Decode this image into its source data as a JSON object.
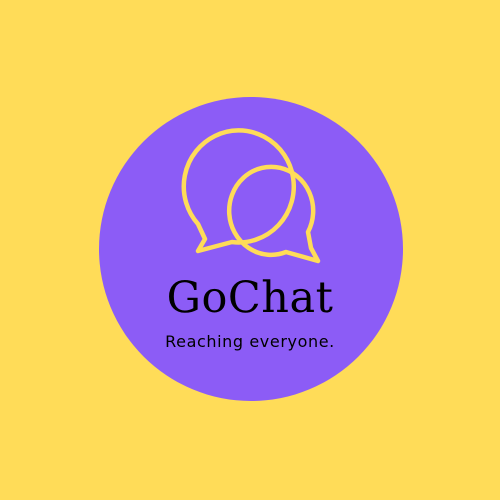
{
  "brand": {
    "name": "GoChat",
    "tagline": "Reaching everyone."
  },
  "icons": {
    "logo": "chat-bubbles-icon"
  },
  "colors": {
    "background": "#ffdc58",
    "badge": "#8c5cf6",
    "logo_stroke": "#ffdc58",
    "text": "#000000"
  }
}
